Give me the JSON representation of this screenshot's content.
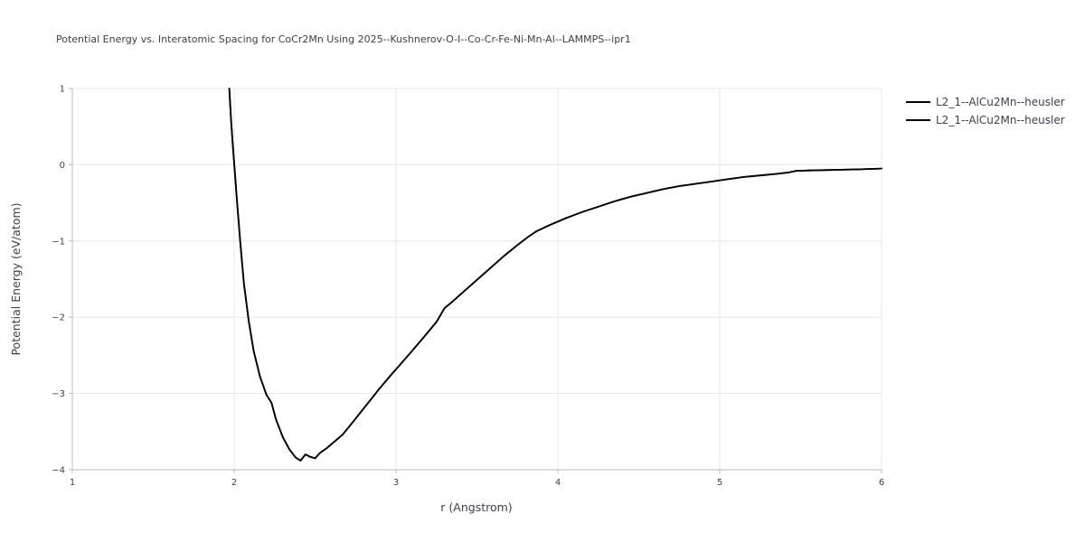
{
  "chart_data": {
    "type": "line",
    "title": "Potential Energy vs. Interatomic Spacing for CoCr2Mn Using 2025--Kushnerov-O-I--Co-Cr-Fe-Ni-Mn-Al--LAMMPS--ipr1",
    "xlabel": "r (Angstrom)",
    "ylabel": "Potential Energy (eV/atom)",
    "xlim": [
      1,
      6
    ],
    "ylim": [
      -4,
      1
    ],
    "xticks": {
      "values": [
        1,
        2,
        3,
        4,
        5,
        6
      ],
      "labels": [
        "1",
        "2",
        "3",
        "4",
        "5",
        "6"
      ]
    },
    "yticks": {
      "values": [
        -4,
        -3,
        -2,
        -1,
        0,
        1
      ],
      "labels": [
        "−4",
        "−3",
        "−2",
        "−1",
        "0",
        "1"
      ]
    },
    "grid": true,
    "legend_position": "top-right-outside",
    "line_color": "#000000",
    "text_color": "#3b4050",
    "grid_color": "#e6e6f0",
    "series": [
      {
        "name": "L2_1--AlCu2Mn--heusler",
        "points": [
          [
            1.97,
            1.0
          ],
          [
            1.98,
            0.62
          ],
          [
            1.99,
            0.3
          ],
          [
            2.0,
            0.02
          ],
          [
            2.02,
            -0.55
          ],
          [
            2.04,
            -1.08
          ],
          [
            2.06,
            -1.55
          ],
          [
            2.09,
            -2.05
          ],
          [
            2.12,
            -2.44
          ],
          [
            2.16,
            -2.78
          ],
          [
            2.2,
            -3.02
          ],
          [
            2.23,
            -3.12
          ],
          [
            2.26,
            -3.35
          ],
          [
            2.3,
            -3.57
          ],
          [
            2.34,
            -3.73
          ],
          [
            2.38,
            -3.84
          ],
          [
            2.41,
            -3.88
          ],
          [
            2.44,
            -3.8
          ],
          [
            2.47,
            -3.83
          ],
          [
            2.5,
            -3.85
          ],
          [
            2.53,
            -3.78
          ],
          [
            2.57,
            -3.72
          ],
          [
            2.62,
            -3.63
          ],
          [
            2.67,
            -3.54
          ],
          [
            2.72,
            -3.41
          ],
          [
            2.78,
            -3.25
          ],
          [
            2.84,
            -3.09
          ],
          [
            2.9,
            -2.93
          ],
          [
            2.96,
            -2.78
          ],
          [
            3.03,
            -2.61
          ],
          [
            3.1,
            -2.44
          ],
          [
            3.18,
            -2.24
          ],
          [
            3.25,
            -2.06
          ],
          [
            3.3,
            -1.88
          ],
          [
            3.34,
            -1.81
          ],
          [
            3.42,
            -1.66
          ],
          [
            3.5,
            -1.51
          ],
          [
            3.58,
            -1.36
          ],
          [
            3.66,
            -1.21
          ],
          [
            3.74,
            -1.07
          ],
          [
            3.82,
            -0.94
          ],
          [
            3.87,
            -0.87
          ],
          [
            3.95,
            -0.79
          ],
          [
            4.05,
            -0.7
          ],
          [
            4.15,
            -0.62
          ],
          [
            4.25,
            -0.55
          ],
          [
            4.35,
            -0.48
          ],
          [
            4.45,
            -0.42
          ],
          [
            4.55,
            -0.37
          ],
          [
            4.65,
            -0.32
          ],
          [
            4.75,
            -0.28
          ],
          [
            4.85,
            -0.25
          ],
          [
            4.95,
            -0.22
          ],
          [
            5.05,
            -0.19
          ],
          [
            5.15,
            -0.16
          ],
          [
            5.25,
            -0.14
          ],
          [
            5.35,
            -0.12
          ],
          [
            5.43,
            -0.1
          ],
          [
            5.47,
            -0.08
          ],
          [
            5.55,
            -0.075
          ],
          [
            5.65,
            -0.07
          ],
          [
            5.75,
            -0.065
          ],
          [
            5.85,
            -0.06
          ],
          [
            6.0,
            -0.05
          ]
        ]
      },
      {
        "name": "L2_1--AlCu2Mn--heusler",
        "points": [
          [
            1.97,
            1.0
          ],
          [
            1.98,
            0.62
          ],
          [
            1.99,
            0.3
          ],
          [
            2.0,
            0.02
          ],
          [
            2.02,
            -0.55
          ],
          [
            2.04,
            -1.08
          ],
          [
            2.06,
            -1.55
          ],
          [
            2.09,
            -2.05
          ],
          [
            2.12,
            -2.44
          ],
          [
            2.16,
            -2.78
          ],
          [
            2.2,
            -3.02
          ],
          [
            2.23,
            -3.12
          ],
          [
            2.26,
            -3.35
          ],
          [
            2.3,
            -3.57
          ],
          [
            2.34,
            -3.73
          ],
          [
            2.38,
            -3.84
          ],
          [
            2.41,
            -3.88
          ],
          [
            2.44,
            -3.8
          ],
          [
            2.47,
            -3.83
          ],
          [
            2.5,
            -3.85
          ],
          [
            2.53,
            -3.78
          ],
          [
            2.57,
            -3.72
          ],
          [
            2.62,
            -3.63
          ],
          [
            2.67,
            -3.54
          ],
          [
            2.72,
            -3.41
          ],
          [
            2.78,
            -3.25
          ],
          [
            2.84,
            -3.09
          ],
          [
            2.9,
            -2.93
          ],
          [
            2.96,
            -2.78
          ],
          [
            3.03,
            -2.61
          ],
          [
            3.1,
            -2.44
          ],
          [
            3.18,
            -2.24
          ],
          [
            3.25,
            -2.06
          ],
          [
            3.3,
            -1.88
          ],
          [
            3.34,
            -1.81
          ],
          [
            3.42,
            -1.66
          ],
          [
            3.5,
            -1.51
          ],
          [
            3.58,
            -1.36
          ],
          [
            3.66,
            -1.21
          ],
          [
            3.74,
            -1.07
          ],
          [
            3.82,
            -0.94
          ],
          [
            3.87,
            -0.87
          ],
          [
            3.95,
            -0.79
          ],
          [
            4.05,
            -0.7
          ],
          [
            4.15,
            -0.62
          ],
          [
            4.25,
            -0.55
          ],
          [
            4.35,
            -0.48
          ],
          [
            4.45,
            -0.42
          ],
          [
            4.55,
            -0.37
          ],
          [
            4.65,
            -0.32
          ],
          [
            4.75,
            -0.28
          ],
          [
            4.85,
            -0.25
          ],
          [
            4.95,
            -0.22
          ],
          [
            5.05,
            -0.19
          ],
          [
            5.15,
            -0.16
          ],
          [
            5.25,
            -0.14
          ],
          [
            5.35,
            -0.12
          ],
          [
            5.43,
            -0.1
          ],
          [
            5.47,
            -0.08
          ],
          [
            5.55,
            -0.075
          ],
          [
            5.65,
            -0.07
          ],
          [
            5.75,
            -0.065
          ],
          [
            5.85,
            -0.06
          ],
          [
            6.0,
            -0.05
          ]
        ]
      }
    ]
  }
}
